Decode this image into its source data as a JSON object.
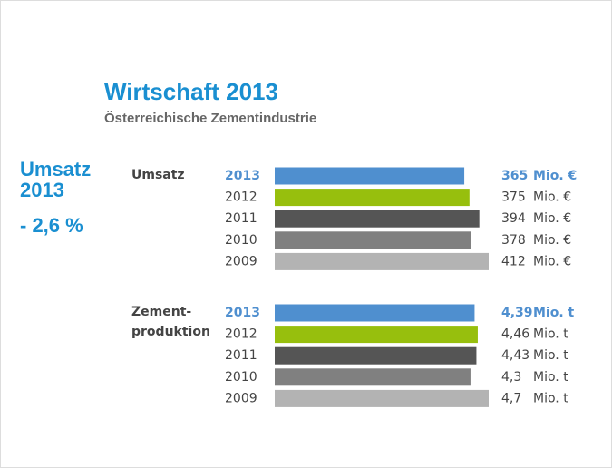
{
  "title": "Wirtschaft 2013",
  "subtitle": "Österreichische Zementindustrie",
  "highlight": {
    "label": [
      "Umsatz",
      "2013"
    ],
    "value": "- 2,6 %"
  },
  "chart_data": [
    {
      "type": "bar",
      "label": [
        "Umsatz"
      ],
      "categories": [
        "2013",
        "2012",
        "2011",
        "2010",
        "2009"
      ],
      "values": [
        365,
        375,
        394,
        378,
        412
      ],
      "unit": "Mio. €",
      "colors": [
        "#4f8fcf",
        "#97bf0d",
        "#555555",
        "#808080",
        "#b3b3b3"
      ]
    },
    {
      "type": "bar",
      "label": [
        "Zement-",
        "produktion"
      ],
      "categories": [
        "2013",
        "2012",
        "2011",
        "2010",
        "2009"
      ],
      "values": [
        4.39,
        4.46,
        4.43,
        4.3,
        4.7
      ],
      "value_labels": [
        "4,39",
        "4,46",
        "4,43",
        "4,3",
        "4,7"
      ],
      "unit": "Mio. t",
      "colors": [
        "#4f8fcf",
        "#97bf0d",
        "#555555",
        "#808080",
        "#b3b3b3"
      ]
    }
  ]
}
